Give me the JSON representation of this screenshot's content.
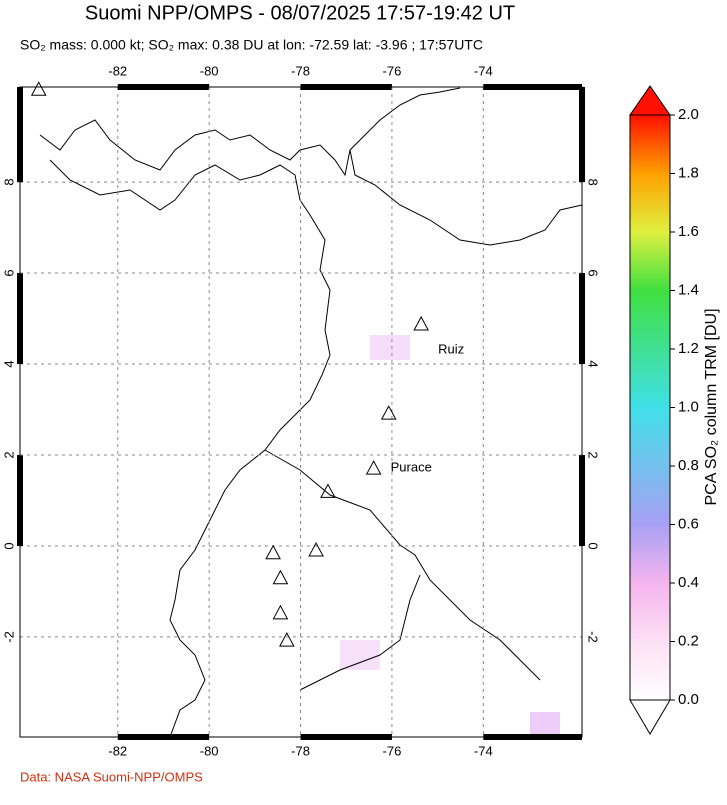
{
  "map": {
    "title": "Suomi NPP/OMPS - 08/07/2025 17:57-19:42 UT",
    "subtitle": "SO₂ mass: 0.000 kt; SO₂ max: 0.38 DU at lon: -72.59 lat: -3.96 ; 17:57UTC",
    "lonlim": [
      -84.14,
      -71.84
    ],
    "latlim": [
      -4.2,
      10.09
    ],
    "lonticks": [
      -82,
      -80,
      -78,
      -76,
      -74
    ],
    "latticks": [
      -2,
      0,
      2,
      4,
      6,
      8
    ],
    "grid": true,
    "volcanoes": [
      {
        "lon": -75.36,
        "lat": 4.88,
        "name": "Ruiz"
      },
      {
        "lon": -76.07,
        "lat": 2.92
      },
      {
        "lon": -76.4,
        "lat": 1.71,
        "name": "Purace"
      },
      {
        "lon": -77.4,
        "lat": 1.2
      },
      {
        "lon": -78.6,
        "lat": -0.15
      },
      {
        "lon": -77.66,
        "lat": -0.09
      },
      {
        "lon": -78.44,
        "lat": -0.7
      },
      {
        "lon": -78.44,
        "lat": -1.47
      },
      {
        "lon": -78.3,
        "lat": -2.07
      },
      {
        "lon": -83.73,
        "lat": 10.04
      }
    ],
    "colorbar": {
      "label": "PCA SO₂ column TRM [DU]",
      "lim": [
        0,
        2
      ],
      "ticks": [
        {
          "value": 0,
          "label": "0.0"
        },
        {
          "value": 0.2,
          "label": "0.2"
        },
        {
          "value": 0.4,
          "label": "0.4"
        },
        {
          "value": 0.6,
          "label": "0.6"
        },
        {
          "value": 0.8,
          "label": "0.8"
        },
        {
          "value": 1,
          "label": "1.0"
        },
        {
          "value": 1.2,
          "label": "1.2"
        },
        {
          "value": 1.4,
          "label": "1.4"
        },
        {
          "value": 1.6,
          "label": "1.6"
        },
        {
          "value": 1.8,
          "label": "1.8"
        },
        {
          "value": 2,
          "label": "2.0"
        }
      ]
    }
  },
  "credit": "Data: NASA Suomi-NPP/OMPS"
}
